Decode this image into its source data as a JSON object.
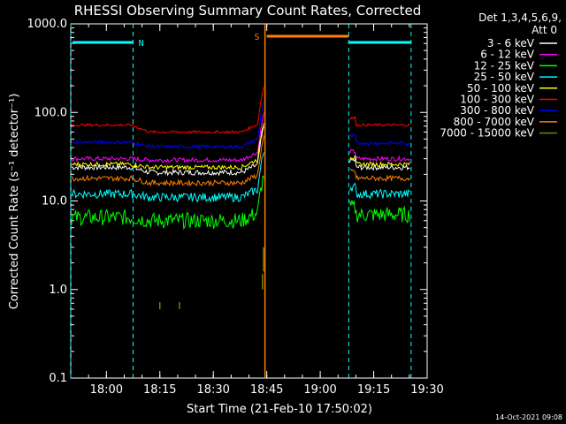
{
  "chart_data": {
    "type": "line",
    "title": "RHESSI Observing Summary Count Rates, Corrected",
    "xlabel": "Start Time (21-Feb-10 17:50:02)",
    "ylabel": "Corrected Count Rate (s⁻¹ detector⁻¹)",
    "x_range_minutes_from_1750": [
      0,
      100
    ],
    "ylim": [
      0.1,
      1000
    ],
    "y_scale": "log",
    "y_ticks": [
      "0.1",
      "1.0",
      "10.0",
      "100.0",
      "1000.0"
    ],
    "x_ticks": [
      "18:00",
      "18:15",
      "18:30",
      "18:45",
      "19:00",
      "19:15",
      "19:30"
    ],
    "x_tick_minutes": [
      10,
      25,
      40,
      55,
      70,
      85,
      100
    ],
    "legend_header": [
      "Det 1,3,4,5,6,9,",
      "Att 0"
    ],
    "footer_date": "14-Oct-2021 09:08",
    "night_marker_label": "N",
    "saa_marker_label": "S",
    "series": [
      {
        "name": "3 - 6 keV",
        "color": "#ffffff",
        "level_day1": 24,
        "level_day2": 21,
        "level_day3": 24
      },
      {
        "name": "6 - 12 keV",
        "color": "#ff00ff",
        "level_day1": 30,
        "level_day2": 29,
        "level_day3": 30
      },
      {
        "name": "12 - 25 keV",
        "color": "#00ff00",
        "level_day1": 6.5,
        "level_day2": 6.0,
        "level_day3": 7.0
      },
      {
        "name": "25 - 50 keV",
        "color": "#00ffff",
        "level_day1": 12,
        "level_day2": 11,
        "level_day3": 12
      },
      {
        "name": "50 - 100 keV",
        "color": "#ffff00",
        "level_day1": 26,
        "level_day2": 24,
        "level_day3": 26
      },
      {
        "name": "100 - 300 keV",
        "color": "#ff0000",
        "level_day1": 72,
        "level_day2": 60,
        "level_day3": 72
      },
      {
        "name": "300 - 800 keV",
        "color": "#0000ff",
        "level_day1": 46,
        "level_day2": 41,
        "level_day3": 45
      },
      {
        "name": "800 - 7000 keV",
        "color": "#ff8000",
        "level_day1": 18,
        "level_day2": 16,
        "level_day3": 18
      },
      {
        "name": "7000 - 15000 keV",
        "color": "#808000",
        "level_day1": null,
        "level_day2": null,
        "level_day3": null
      }
    ]
  }
}
